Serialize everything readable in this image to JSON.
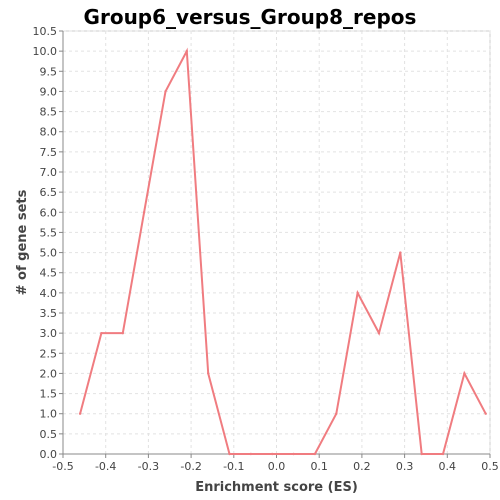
{
  "chart_data": {
    "type": "line",
    "title": "Group6_versus_Group8_repos",
    "xlabel": "Enrichment score (ES)",
    "ylabel": "# of gene sets",
    "xlim": [
      -0.5,
      0.5
    ],
    "ylim": [
      0,
      10.5
    ],
    "x_ticks": [
      "-0.5",
      "-0.4",
      "-0.3",
      "-0.2",
      "-0.1",
      "0.0",
      "0.1",
      "0.2",
      "0.3",
      "0.4",
      "0.5"
    ],
    "y_ticks": [
      "0.0",
      "0.5",
      "1.0",
      "1.5",
      "2.0",
      "2.5",
      "3.0",
      "3.5",
      "4.0",
      "4.5",
      "5.0",
      "5.5",
      "6.0",
      "6.5",
      "7.0",
      "7.5",
      "8.0",
      "8.5",
      "9.0",
      "9.5",
      "10.0",
      "10.5"
    ],
    "grid": true,
    "legend": "none",
    "series": [
      {
        "color": "#f07c80",
        "x": [
          -0.46,
          -0.41,
          -0.36,
          -0.31,
          -0.26,
          -0.21,
          -0.16,
          -0.11,
          -0.06,
          -0.01,
          0.04,
          0.09,
          0.14,
          0.19,
          0.24,
          0.29,
          0.34,
          0.39,
          0.44,
          0.49
        ],
        "y": [
          1,
          3,
          3,
          6,
          9,
          10,
          2,
          0,
          0,
          0,
          0,
          0,
          1,
          4,
          3,
          5,
          0,
          0,
          2,
          1
        ]
      }
    ]
  }
}
